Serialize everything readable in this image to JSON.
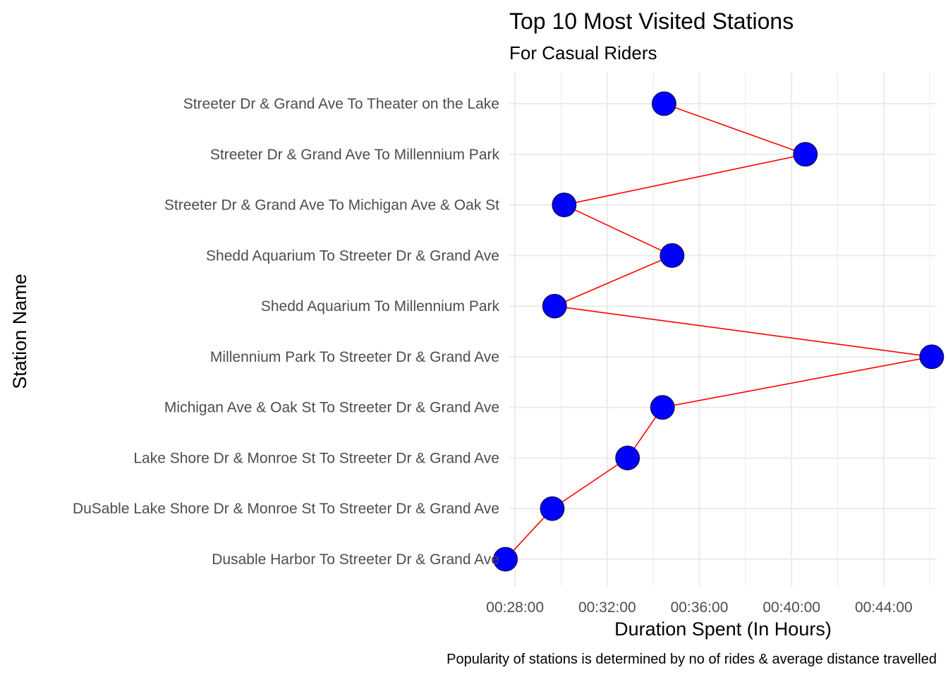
{
  "chart_data": {
    "type": "line",
    "title": "Top 10 Most Visited Stations",
    "subtitle": "For Casual Riders",
    "xlabel": "Duration Spent (In Hours)",
    "ylabel": "Station Name",
    "caption": "Popularity of stations is determined by no of rides & average distance travelled",
    "x_unit": "seconds",
    "xlim": [
      1665,
      2778
    ],
    "x_ticks": [
      {
        "value": 1680,
        "label": "00:28:00"
      },
      {
        "value": 1920,
        "label": "00:32:00"
      },
      {
        "value": 2160,
        "label": "00:36:00"
      },
      {
        "value": 2400,
        "label": "00:40:00"
      },
      {
        "value": 2640,
        "label": "00:44:00"
      }
    ],
    "categories": [
      "Dusable Harbor To Streeter Dr & Grand Ave",
      "DuSable Lake Shore Dr & Monroe St To Streeter Dr & Grand Ave",
      "Lake Shore Dr & Monroe St To Streeter Dr & Grand Ave",
      "Michigan Ave & Oak St To Streeter Dr & Grand Ave",
      "Millennium Park To Streeter Dr & Grand Ave",
      "Shedd Aquarium To Millennium Park",
      "Shedd Aquarium To Streeter Dr & Grand Ave",
      "Streeter Dr & Grand Ave To Michigan Ave & Oak St",
      "Streeter Dr & Grand Ave To Millennium Park",
      "Streeter Dr & Grand Ave To Theater on the Lake"
    ],
    "values": [
      1655,
      1777,
      1973,
      2064,
      2765,
      1783,
      2089,
      1808,
      2436,
      2068
    ],
    "line_color": "#ff0000",
    "point_color": "#0000ff",
    "grid": true,
    "legend": "none"
  }
}
